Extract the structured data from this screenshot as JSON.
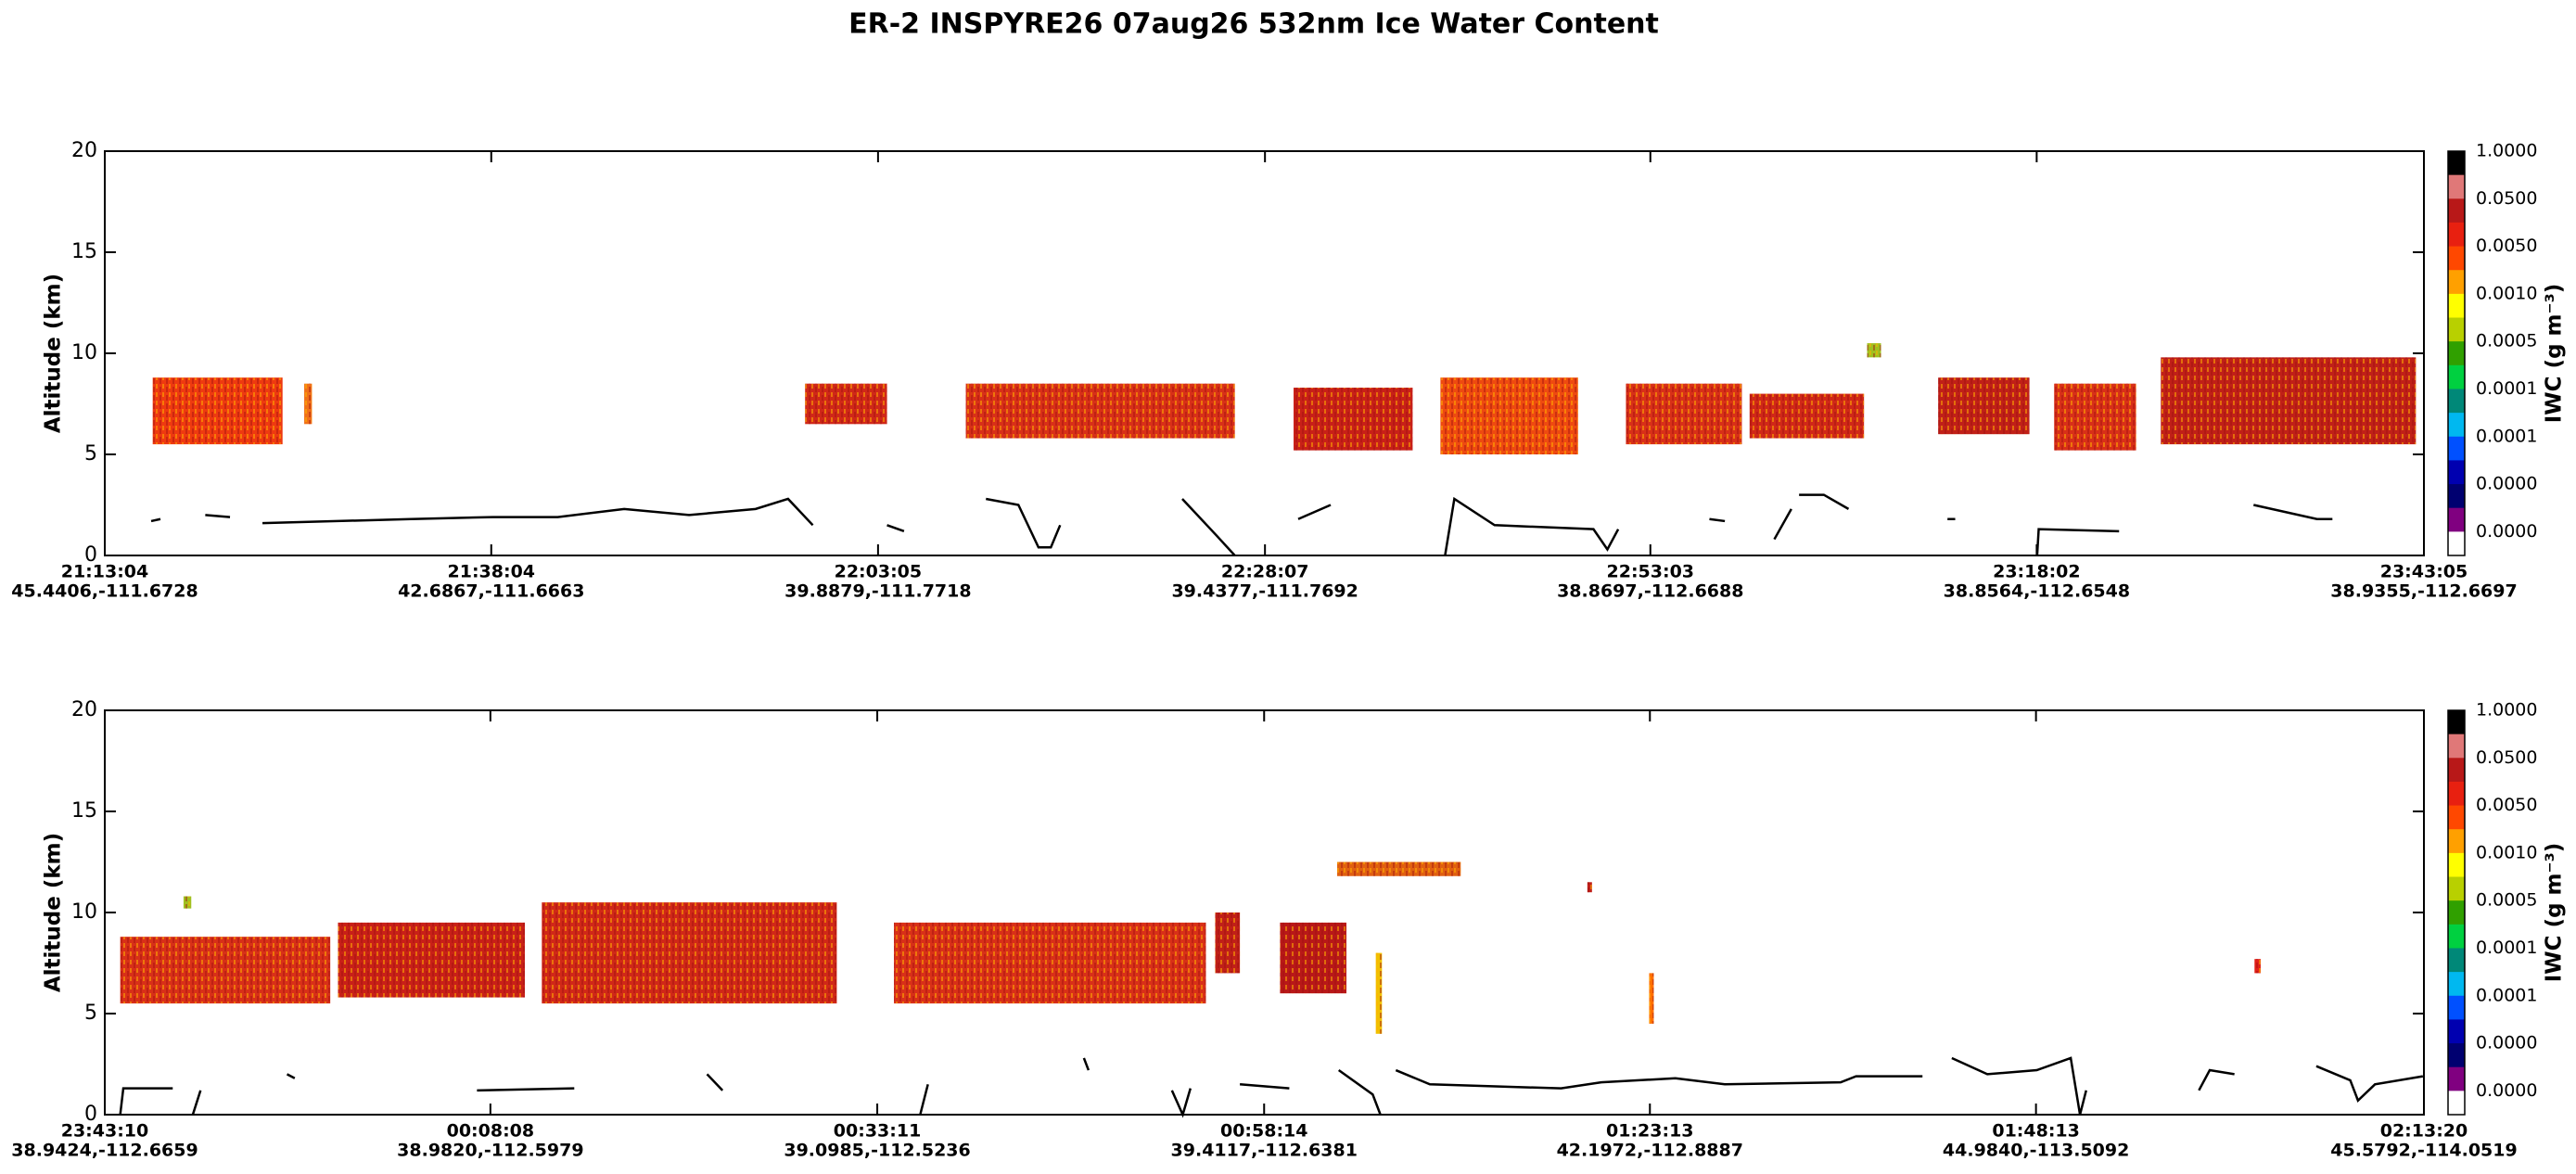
{
  "title": "ER-2  INSPYRE26  07aug26  532nm Ice Water Content",
  "chart_data": [
    {
      "type": "curtain",
      "ylabel": "Altitude (km)",
      "ylim": [
        0,
        20
      ],
      "yticks": [
        0,
        5,
        10,
        15,
        20
      ],
      "xlim": [
        0,
        150.02
      ],
      "xticks": [
        {
          "value": 0,
          "label": "21:13:04"
        },
        {
          "value": 25,
          "label": "21:38:04"
        },
        {
          "value": 50.02,
          "label": "22:03:05"
        },
        {
          "value": 75.05,
          "label": "22:28:07"
        },
        {
          "value": 99.98,
          "label": "22:53:03"
        },
        {
          "value": 124.97,
          "label": "23:18:02"
        },
        {
          "value": 150.02,
          "label": "23:43:05"
        }
      ],
      "xtick_locations": [
        "45.4406,-111.6728",
        "42.6867,-111.6663",
        "39.8879,-111.7718",
        "39.4377,-111.7692",
        "38.8697,-112.6688",
        "38.8564,-112.6548",
        "38.9355,-112.6697"
      ],
      "clouds": [
        {
          "x0": 3.1,
          "x1": 11.5,
          "base": 5.5,
          "top": 8.8,
          "color": "#ee3a10"
        },
        {
          "x0": 12.9,
          "x1": 13.4,
          "base": 6.5,
          "top": 8.5,
          "color": "#f07018"
        },
        {
          "x0": 45.3,
          "x1": 50.6,
          "base": 6.5,
          "top": 8.5,
          "color": "#d02818"
        },
        {
          "x0": 55.7,
          "x1": 73.1,
          "base": 5.8,
          "top": 8.5,
          "color": "#d83018"
        },
        {
          "x0": 76.9,
          "x1": 84.6,
          "base": 5.2,
          "top": 8.3,
          "color": "#c82018"
        },
        {
          "x0": 86.4,
          "x1": 95.3,
          "base": 5.0,
          "top": 8.8,
          "color": "#ee4a10"
        },
        {
          "x0": 98.4,
          "x1": 105.9,
          "base": 5.5,
          "top": 8.5,
          "color": "#d83018"
        },
        {
          "x0": 106.4,
          "x1": 113.8,
          "base": 5.8,
          "top": 8.0,
          "color": "#d02818"
        },
        {
          "x0": 114.0,
          "x1": 114.9,
          "base": 9.8,
          "top": 10.5,
          "color": "#a0c020"
        },
        {
          "x0": 118.6,
          "x1": 124.5,
          "base": 6.0,
          "top": 8.8,
          "color": "#c02018"
        },
        {
          "x0": 126.1,
          "x1": 131.4,
          "base": 5.2,
          "top": 8.5,
          "color": "#d83018"
        },
        {
          "x0": 133.0,
          "x1": 149.5,
          "base": 5.5,
          "top": 9.8,
          "color": "#c02018"
        }
      ],
      "surface": {
        "color": "#000000",
        "x": [
          3.0,
          3.6,
          null,
          6.5,
          8.1,
          null,
          10.2,
          19.8,
          25.1,
          29.3,
          33.6,
          37.8,
          42.1,
          44.2,
          45.8,
          null,
          50.6,
          51.7,
          null,
          57.0,
          59.1,
          60.4,
          61.2,
          61.8,
          null,
          69.7,
          71.9,
          73.1,
          null,
          77.2,
          79.3,
          null,
          86.7,
          87.3,
          89.9,
          96.3,
          97.2,
          97.9,
          null,
          103.8,
          104.8,
          null,
          108.0,
          109.1,
          null,
          109.6,
          111.2,
          112.8,
          null,
          119.2,
          119.7,
          null,
          125.0,
          125.1,
          130.3,
          null,
          139.0,
          143.1,
          144.1
        ],
        "y": [
          1.7,
          1.8,
          null,
          2.0,
          1.9,
          null,
          1.6,
          1.8,
          1.9,
          1.9,
          2.3,
          2.0,
          2.3,
          2.8,
          1.5,
          null,
          1.5,
          1.2,
          null,
          2.8,
          2.5,
          0.4,
          0.4,
          1.5,
          null,
          2.8,
          1.0,
          0.0,
          null,
          1.8,
          2.5,
          null,
          0.0,
          2.8,
          1.5,
          1.3,
          0.3,
          1.3,
          null,
          1.8,
          1.7,
          null,
          0.8,
          2.3,
          null,
          3.0,
          3.0,
          2.3,
          null,
          1.8,
          1.8,
          null,
          0.0,
          1.3,
          1.2,
          null,
          2.5,
          1.8,
          1.8
        ]
      },
      "colorbar": {
        "label": "IWC (g m⁻³)",
        "colors": [
          "#000000",
          "#e07878",
          "#b81818",
          "#e82010",
          "#ff4800",
          "#ffa000",
          "#ffff00",
          "#b8d000",
          "#30a000",
          "#00d040",
          "#008878",
          "#00b8f0",
          "#0050ff",
          "#0000b0",
          "#000070",
          "#800080",
          "#ffffff"
        ],
        "labels": [
          "1.0000",
          "0.0500",
          "0.0050",
          "0.0010",
          "0.0005",
          "0.0001",
          "0.0001",
          "0.0000",
          "0.0000"
        ]
      }
    },
    {
      "type": "curtain",
      "ylabel": "Altitude (km)",
      "ylim": [
        0,
        20
      ],
      "yticks": [
        0,
        5,
        10,
        15,
        20
      ],
      "xlim": [
        0,
        150.17
      ],
      "xticks": [
        {
          "value": 0,
          "label": "23:43:10"
        },
        {
          "value": 24.97,
          "label": "00:08:08"
        },
        {
          "value": 50.02,
          "label": "00:33:11"
        },
        {
          "value": 75.07,
          "label": "00:58:14"
        },
        {
          "value": 100.05,
          "label": "01:23:13"
        },
        {
          "value": 125.05,
          "label": "01:48:13"
        },
        {
          "value": 150.17,
          "label": "02:13:20"
        }
      ],
      "xtick_locations": [
        "38.9424,-112.6659",
        "38.9820,-112.5979",
        "39.0985,-112.5236",
        "39.4117,-112.6381",
        "42.1972,-112.8887",
        "44.9840,-113.5092",
        "45.5792,-114.0519"
      ],
      "clouds": [
        {
          "x0": 1.0,
          "x1": 14.6,
          "base": 5.5,
          "top": 8.8,
          "color": "#d83018"
        },
        {
          "x0": 5.1,
          "x1": 5.6,
          "base": 10.2,
          "top": 10.8,
          "color": "#a0c020"
        },
        {
          "x0": 15.1,
          "x1": 27.2,
          "base": 5.8,
          "top": 9.5,
          "color": "#c82018"
        },
        {
          "x0": 28.3,
          "x1": 47.4,
          "base": 5.5,
          "top": 10.5,
          "color": "#d02818"
        },
        {
          "x0": 51.1,
          "x1": 71.3,
          "base": 5.5,
          "top": 9.5,
          "color": "#d83018"
        },
        {
          "x0": 71.9,
          "x1": 73.5,
          "base": 7.0,
          "top": 10.0,
          "color": "#c02018"
        },
        {
          "x0": 76.1,
          "x1": 80.4,
          "base": 6.0,
          "top": 9.5,
          "color": "#b81818"
        },
        {
          "x0": 79.8,
          "x1": 87.8,
          "base": 11.8,
          "top": 12.5,
          "color": "#e06010"
        },
        {
          "x0": 82.3,
          "x1": 82.7,
          "base": 4.0,
          "top": 8.0,
          "color": "#f0c000"
        },
        {
          "x0": 96.0,
          "x1": 96.3,
          "base": 11.0,
          "top": 11.5,
          "color": "#c02018"
        },
        {
          "x0": 100.0,
          "x1": 100.3,
          "base": 4.5,
          "top": 7.0,
          "color": "#ff7000"
        },
        {
          "x0": 139.2,
          "x1": 139.6,
          "base": 7.0,
          "top": 7.7,
          "color": "#e02018"
        }
      ],
      "surface": {
        "color": "#000000",
        "x": [
          1.0,
          1.2,
          4.4,
          null,
          5.7,
          6.2,
          null,
          11.8,
          12.3,
          null,
          24.1,
          30.4,
          null,
          39.0,
          40.0,
          null,
          52.8,
          53.3,
          null,
          63.4,
          63.7,
          null,
          69.1,
          69.8,
          70.3,
          null,
          73.5,
          76.7,
          null,
          79.9,
          82.1,
          82.6,
          null,
          83.6,
          85.8,
          94.3,
          96.9,
          101.7,
          104.9,
          112.4,
          113.4,
          117.7,
          null,
          119.6,
          121.9,
          125.1,
          127.3,
          127.9,
          128.3,
          null,
          135.6,
          136.3,
          137.9,
          null,
          143.2,
          145.4,
          145.9,
          147.0,
          150.1
        ],
        "y": [
          0.0,
          1.3,
          1.3,
          null,
          0.0,
          1.2,
          null,
          2.0,
          1.8,
          null,
          1.2,
          1.3,
          null,
          2.0,
          1.2,
          null,
          0.0,
          1.5,
          null,
          2.8,
          2.2,
          null,
          1.2,
          0.0,
          1.3,
          null,
          1.5,
          1.3,
          null,
          2.2,
          1.0,
          0.0,
          null,
          2.2,
          1.5,
          1.3,
          1.6,
          1.8,
          1.5,
          1.6,
          1.9,
          1.9,
          null,
          2.8,
          2.0,
          2.2,
          2.8,
          0.0,
          1.2,
          null,
          1.2,
          2.2,
          2.0,
          null,
          2.4,
          1.7,
          0.7,
          1.5,
          1.9
        ]
      },
      "colorbar": {
        "label": "IWC (g m⁻³)",
        "colors": [
          "#000000",
          "#e07878",
          "#b81818",
          "#e82010",
          "#ff4800",
          "#ffa000",
          "#ffff00",
          "#b8d000",
          "#30a000",
          "#00d040",
          "#008878",
          "#00b8f0",
          "#0050ff",
          "#0000b0",
          "#000070",
          "#800080",
          "#ffffff"
        ],
        "labels": [
          "1.0000",
          "0.0500",
          "0.0050",
          "0.0010",
          "0.0005",
          "0.0001",
          "0.0001",
          "0.0000",
          "0.0000"
        ]
      }
    }
  ]
}
